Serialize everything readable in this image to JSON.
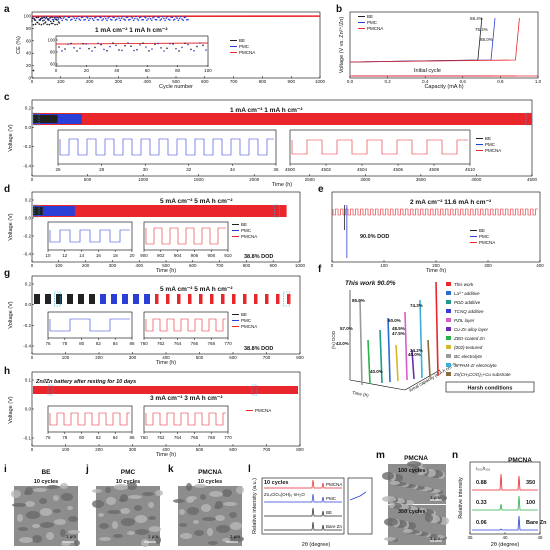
{
  "panel_letters": [
    "a",
    "b",
    "c",
    "d",
    "e",
    "f",
    "g",
    "h",
    "i",
    "j",
    "k",
    "l",
    "m",
    "n"
  ],
  "colors": {
    "BE": "#222222",
    "PMC": "#2b3fd6",
    "PMCNA": "#e8262b"
  },
  "panels": {
    "a": {
      "ylabel": "CE (%)",
      "xlabel": "Cycle number",
      "condition": "1 mA cm⁻²   1 mA h cm⁻²",
      "legend": [
        "BE",
        "PMC",
        "PMCNA"
      ],
      "yticks": [
        "0",
        "20",
        "40",
        "60",
        "80",
        "100"
      ],
      "xticks": [
        "0",
        "100",
        "200",
        "300",
        "400",
        "500",
        "600",
        "700",
        "800",
        "900",
        "1000"
      ],
      "inset_xticks": [
        "0",
        "20",
        "40",
        "60",
        "80",
        "100"
      ],
      "inset_yticks": [
        "60",
        "80",
        "100"
      ]
    },
    "b": {
      "ylabel": "Voltage (V vs. Zn²⁺/Zn)",
      "xlabel": "Capacity (mA h)",
      "legend": [
        "BE",
        "PMC",
        "PMCNA"
      ],
      "labels": [
        "68.4%",
        "75.2%",
        "88.0%"
      ],
      "note": "Initial cycle",
      "xticks": [
        "0.0",
        "0.2",
        "0.4",
        "0.6",
        "0.8",
        "1.0"
      ]
    },
    "c": {
      "ylabel": "Voltage (V)",
      "xlabel": "Time (h)",
      "condition": "1 mA cm⁻²   1 mA h cm⁻²",
      "legend": [
        "BE",
        "PMC",
        "PMCNA"
      ],
      "xticks": [
        "0",
        "500",
        "1000",
        "1500",
        "2000",
        "2500",
        "3000",
        "3500",
        "4000",
        "4500"
      ],
      "yticks": [
        "0.2",
        "0.0",
        "-0.2",
        "-0.4"
      ],
      "inset1_xticks": [
        "26",
        "28",
        "30",
        "32",
        "34",
        "36"
      ],
      "inset2_xticks": [
        "4500",
        "4502",
        "4504",
        "4506",
        "4508",
        "4510"
      ]
    },
    "d": {
      "ylabel": "Voltage (V)",
      "xlabel": "Time (h)",
      "condition": "5 mA cm⁻²   5 mA h cm⁻²",
      "dod": "38.8% DOD",
      "legend": [
        "BE",
        "PMC",
        "PMCNA"
      ],
      "xticks": [
        "0",
        "100",
        "200",
        "300",
        "400",
        "500",
        "600",
        "700",
        "800",
        "900",
        "1000"
      ],
      "yticks": [
        "0.2",
        "0.0",
        "-0.2",
        "-0.4"
      ],
      "inset1_xticks": [
        "10",
        "12",
        "14",
        "16",
        "18",
        "20"
      ],
      "inset2_xticks": [
        "900",
        "902",
        "904",
        "906",
        "908",
        "910"
      ]
    },
    "e": {
      "xlabel": "Time (h)",
      "condition": "2 mA cm⁻²   11.6 mA h cm⁻²",
      "dod": "90.0% DOD",
      "legend": [
        "BE",
        "PMC",
        "PMCNA"
      ],
      "xticks": [
        "0",
        "100",
        "200",
        "300",
        "400"
      ]
    },
    "f": {
      "title": "This work  90.0%",
      "labels": [
        "85.0%",
        "40.0%",
        "34.2%",
        "57.0%",
        "48.5%",
        "43.0%",
        "60.0%",
        "74.3%",
        "47.5%",
        "40.0%"
      ],
      "ylabel": "(%) DOD",
      "axis_labels": [
        "Time (h)",
        "Areal capacity (mA h cm⁻²)"
      ],
      "legend": [
        "This work",
        "La³⁺ additive",
        "PDD additive",
        "TCNQ additive",
        "PZIL layer",
        "Cu-Zn alloy layer",
        "ZBO-coated Zn",
        "(002)-textured",
        "BC electrolyte",
        "SFPAM-Zr electrolyte",
        "Zn(CH₃COO)₂+Cu substrate"
      ],
      "legend_colors": [
        "#e8262b",
        "#2b6bd6",
        "#1f9a8a",
        "#3a3ad6",
        "#d65ec6",
        "#6a2bb0",
        "#2bb04a",
        "#d6b62b",
        "#9a9a9a",
        "#3ab0d6",
        "#8a6a3a"
      ],
      "footer": "Harsh conditions"
    },
    "g": {
      "ylabel": "Voltage (V)",
      "xlabel": "Time (h)",
      "condition": "5 mA cm⁻²   5 mA h cm⁻²",
      "dod": "38.8% DOD",
      "legend": [
        "BE",
        "PMC",
        "PMCNA"
      ],
      "xticks": [
        "0",
        "100",
        "200",
        "300",
        "400",
        "500",
        "600",
        "700",
        "800"
      ],
      "yticks": [
        "0.2",
        "0.0",
        "-0.2",
        "-0.4"
      ],
      "inset1_xticks": [
        "76",
        "78",
        "80",
        "82",
        "84",
        "86"
      ],
      "inset2_xticks": [
        "760",
        "762",
        "764",
        "766",
        "768",
        "770"
      ]
    },
    "h": {
      "ylabel": "Voltage (V)",
      "xlabel": "Time (h)",
      "note": "Zn//Zn battery after resting for 10 days",
      "condition": "3 mA cm⁻²   3 mA h cm⁻²",
      "legend": [
        "PMCNA"
      ],
      "xticks": [
        "0",
        "100",
        "200",
        "300",
        "400",
        "500",
        "600",
        "700",
        "800"
      ],
      "yticks": [
        "0.1",
        "0.0",
        "-0.1"
      ],
      "inset1_xticks": [
        "76",
        "78",
        "80",
        "82",
        "84",
        "86"
      ],
      "inset2_xticks": [
        "760",
        "762",
        "764",
        "766",
        "768",
        "770"
      ]
    },
    "i": {
      "title": "BE",
      "subtitle": "10 cycles",
      "scale": "1 μm"
    },
    "j": {
      "title": "PMC",
      "subtitle": "10 cycles",
      "scale": "1 μm"
    },
    "k": {
      "title": "PMCNA",
      "subtitle": "10 cycles",
      "scale": "1 μm"
    },
    "l": {
      "ylabel": "Relative intensity (a.u.)",
      "xlabel": "2θ (degree)",
      "header": "10 cycles",
      "traces": [
        "PMCNA",
        "PMC",
        "BE",
        "Bare Zn"
      ],
      "ref": "Zn₄ClO₄(OH)₆·nH₂O",
      "xticks": [
        "10",
        "20",
        "30",
        "40",
        "50",
        "60",
        "70",
        "80",
        "9",
        "12",
        "15"
      ]
    },
    "m": {
      "title": "PMCNA",
      "labels": [
        "100 cycles",
        "350 cycles"
      ],
      "scale": "1 μm"
    },
    "n": {
      "title": "PMCNA",
      "ratio_label": "I₀₀₂/I₁₀₁",
      "ratios": [
        "0.88",
        "0.33",
        "0.06"
      ],
      "cycles": [
        "350",
        "100",
        "Bare Zn"
      ],
      "ylabel": "Relative intensity",
      "xlabel": "2θ (degree)",
      "xticks": [
        "35",
        "40",
        "45"
      ]
    }
  },
  "chart_data": [
    {
      "panel": "a",
      "type": "scatter",
      "x": [
        0,
        20,
        40,
        60,
        80,
        100,
        200,
        400,
        600,
        800,
        1000
      ],
      "series": [
        {
          "name": "PMCNA",
          "values": [
            99.2,
            99.6,
            99.7,
            99.8,
            99.8,
            99.8,
            99.8,
            99.8,
            99.8,
            99.8,
            99.8
          ]
        },
        {
          "name": "PMC",
          "values": [
            94,
            97,
            98,
            96,
            97,
            95,
            97,
            null,
            null,
            null,
            null
          ]
        },
        {
          "name": "BE",
          "values": [
            88,
            95,
            92,
            90,
            null,
            null,
            null,
            null,
            null,
            null,
            null
          ]
        }
      ],
      "ylim": [
        0,
        105
      ],
      "xlim": [
        0,
        1000
      ]
    },
    {
      "panel": "b",
      "type": "line",
      "series": [
        {
          "name": "BE",
          "ce": "68.4%"
        },
        {
          "name": "PMC",
          "ce": "75.2%"
        },
        {
          "name": "PMCNA",
          "ce": "88.0%"
        }
      ],
      "xlim": [
        0,
        1.0
      ]
    },
    {
      "panel": "c",
      "type": "line",
      "series": [
        {
          "name": "BE",
          "end_h": 230
        },
        {
          "name": "PMC",
          "end_h": 450
        },
        {
          "name": "PMCNA",
          "end_h": 4500
        }
      ],
      "xlim": [
        0,
        4500
      ],
      "ylim": [
        -0.4,
        0.2
      ]
    },
    {
      "panel": "d",
      "type": "line",
      "series": [
        {
          "name": "BE",
          "end_h": 40
        },
        {
          "name": "PMC",
          "end_h": 160
        },
        {
          "name": "PMCNA",
          "end_h": 950
        }
      ],
      "xlim": [
        0,
        1000
      ],
      "ylim": [
        -0.4,
        0.2
      ]
    },
    {
      "panel": "e",
      "type": "line",
      "series": [
        {
          "name": "BE",
          "end_h": 30
        },
        {
          "name": "PMC",
          "end_h": 40
        },
        {
          "name": "PMCNA",
          "end_h": 420
        }
      ],
      "xlim": [
        0,
        420
      ]
    },
    {
      "panel": "g",
      "type": "line",
      "series": [
        {
          "name": "BE",
          "end_h": 180
        },
        {
          "name": "PMC",
          "end_h": 360
        },
        {
          "name": "PMCNA",
          "end_h": 770
        }
      ],
      "xlim": [
        0,
        800
      ],
      "ylim": [
        -0.4,
        0.2
      ]
    },
    {
      "panel": "h",
      "type": "line",
      "series": [
        {
          "name": "PMCNA",
          "end_h": 800
        }
      ],
      "xlim": [
        0,
        800
      ],
      "ylim": [
        -0.1,
        0.1
      ]
    },
    {
      "panel": "n",
      "type": "bar",
      "categories": [
        "Bare Zn",
        "100",
        "350"
      ],
      "values": [
        0.06,
        0.33,
        0.88
      ]
    }
  ]
}
